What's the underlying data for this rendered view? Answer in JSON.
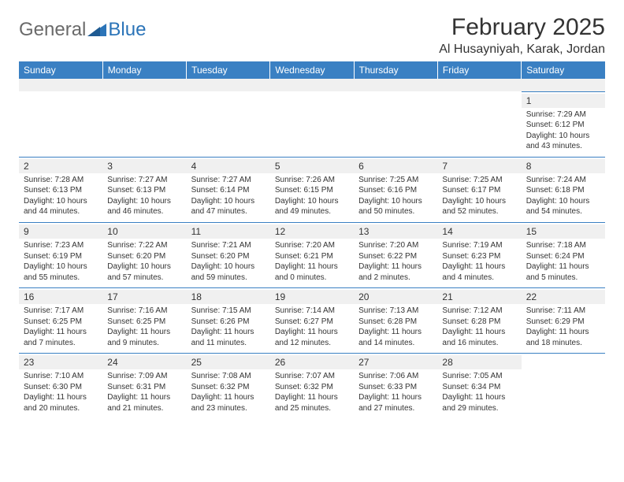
{
  "logo": {
    "general": "General",
    "blue": "Blue"
  },
  "title": "February 2025",
  "subtitle": "Al Husayniyah, Karak, Jordan",
  "colors": {
    "header_bg": "#3a80c3",
    "header_text": "#ffffff",
    "rule": "#3a80c3",
    "spacer_bg": "#f0f0f0",
    "daynum_bg": "#f0f0f0",
    "body_text": "#333333",
    "logo_gray": "#6a6a6a",
    "logo_blue": "#2b74b8",
    "page_bg": "#ffffff"
  },
  "typography": {
    "title_fontsize": 30,
    "subtitle_fontsize": 16,
    "dayhead_fontsize": 12,
    "daynum_fontsize": 12,
    "body_fontsize": 10
  },
  "dayheads": [
    "Sunday",
    "Monday",
    "Tuesday",
    "Wednesday",
    "Thursday",
    "Friday",
    "Saturday"
  ],
  "weeks": [
    [
      null,
      null,
      null,
      null,
      null,
      null,
      {
        "n": "1",
        "sr": "Sunrise: 7:29 AM",
        "ss": "Sunset: 6:12 PM",
        "dl1": "Daylight: 10 hours",
        "dl2": "and 43 minutes."
      }
    ],
    [
      {
        "n": "2",
        "sr": "Sunrise: 7:28 AM",
        "ss": "Sunset: 6:13 PM",
        "dl1": "Daylight: 10 hours",
        "dl2": "and 44 minutes."
      },
      {
        "n": "3",
        "sr": "Sunrise: 7:27 AM",
        "ss": "Sunset: 6:13 PM",
        "dl1": "Daylight: 10 hours",
        "dl2": "and 46 minutes."
      },
      {
        "n": "4",
        "sr": "Sunrise: 7:27 AM",
        "ss": "Sunset: 6:14 PM",
        "dl1": "Daylight: 10 hours",
        "dl2": "and 47 minutes."
      },
      {
        "n": "5",
        "sr": "Sunrise: 7:26 AM",
        "ss": "Sunset: 6:15 PM",
        "dl1": "Daylight: 10 hours",
        "dl2": "and 49 minutes."
      },
      {
        "n": "6",
        "sr": "Sunrise: 7:25 AM",
        "ss": "Sunset: 6:16 PM",
        "dl1": "Daylight: 10 hours",
        "dl2": "and 50 minutes."
      },
      {
        "n": "7",
        "sr": "Sunrise: 7:25 AM",
        "ss": "Sunset: 6:17 PM",
        "dl1": "Daylight: 10 hours",
        "dl2": "and 52 minutes."
      },
      {
        "n": "8",
        "sr": "Sunrise: 7:24 AM",
        "ss": "Sunset: 6:18 PM",
        "dl1": "Daylight: 10 hours",
        "dl2": "and 54 minutes."
      }
    ],
    [
      {
        "n": "9",
        "sr": "Sunrise: 7:23 AM",
        "ss": "Sunset: 6:19 PM",
        "dl1": "Daylight: 10 hours",
        "dl2": "and 55 minutes."
      },
      {
        "n": "10",
        "sr": "Sunrise: 7:22 AM",
        "ss": "Sunset: 6:20 PM",
        "dl1": "Daylight: 10 hours",
        "dl2": "and 57 minutes."
      },
      {
        "n": "11",
        "sr": "Sunrise: 7:21 AM",
        "ss": "Sunset: 6:20 PM",
        "dl1": "Daylight: 10 hours",
        "dl2": "and 59 minutes."
      },
      {
        "n": "12",
        "sr": "Sunrise: 7:20 AM",
        "ss": "Sunset: 6:21 PM",
        "dl1": "Daylight: 11 hours",
        "dl2": "and 0 minutes."
      },
      {
        "n": "13",
        "sr": "Sunrise: 7:20 AM",
        "ss": "Sunset: 6:22 PM",
        "dl1": "Daylight: 11 hours",
        "dl2": "and 2 minutes."
      },
      {
        "n": "14",
        "sr": "Sunrise: 7:19 AM",
        "ss": "Sunset: 6:23 PM",
        "dl1": "Daylight: 11 hours",
        "dl2": "and 4 minutes."
      },
      {
        "n": "15",
        "sr": "Sunrise: 7:18 AM",
        "ss": "Sunset: 6:24 PM",
        "dl1": "Daylight: 11 hours",
        "dl2": "and 5 minutes."
      }
    ],
    [
      {
        "n": "16",
        "sr": "Sunrise: 7:17 AM",
        "ss": "Sunset: 6:25 PM",
        "dl1": "Daylight: 11 hours",
        "dl2": "and 7 minutes."
      },
      {
        "n": "17",
        "sr": "Sunrise: 7:16 AM",
        "ss": "Sunset: 6:25 PM",
        "dl1": "Daylight: 11 hours",
        "dl2": "and 9 minutes."
      },
      {
        "n": "18",
        "sr": "Sunrise: 7:15 AM",
        "ss": "Sunset: 6:26 PM",
        "dl1": "Daylight: 11 hours",
        "dl2": "and 11 minutes."
      },
      {
        "n": "19",
        "sr": "Sunrise: 7:14 AM",
        "ss": "Sunset: 6:27 PM",
        "dl1": "Daylight: 11 hours",
        "dl2": "and 12 minutes."
      },
      {
        "n": "20",
        "sr": "Sunrise: 7:13 AM",
        "ss": "Sunset: 6:28 PM",
        "dl1": "Daylight: 11 hours",
        "dl2": "and 14 minutes."
      },
      {
        "n": "21",
        "sr": "Sunrise: 7:12 AM",
        "ss": "Sunset: 6:28 PM",
        "dl1": "Daylight: 11 hours",
        "dl2": "and 16 minutes."
      },
      {
        "n": "22",
        "sr": "Sunrise: 7:11 AM",
        "ss": "Sunset: 6:29 PM",
        "dl1": "Daylight: 11 hours",
        "dl2": "and 18 minutes."
      }
    ],
    [
      {
        "n": "23",
        "sr": "Sunrise: 7:10 AM",
        "ss": "Sunset: 6:30 PM",
        "dl1": "Daylight: 11 hours",
        "dl2": "and 20 minutes."
      },
      {
        "n": "24",
        "sr": "Sunrise: 7:09 AM",
        "ss": "Sunset: 6:31 PM",
        "dl1": "Daylight: 11 hours",
        "dl2": "and 21 minutes."
      },
      {
        "n": "25",
        "sr": "Sunrise: 7:08 AM",
        "ss": "Sunset: 6:32 PM",
        "dl1": "Daylight: 11 hours",
        "dl2": "and 23 minutes."
      },
      {
        "n": "26",
        "sr": "Sunrise: 7:07 AM",
        "ss": "Sunset: 6:32 PM",
        "dl1": "Daylight: 11 hours",
        "dl2": "and 25 minutes."
      },
      {
        "n": "27",
        "sr": "Sunrise: 7:06 AM",
        "ss": "Sunset: 6:33 PM",
        "dl1": "Daylight: 11 hours",
        "dl2": "and 27 minutes."
      },
      {
        "n": "28",
        "sr": "Sunrise: 7:05 AM",
        "ss": "Sunset: 6:34 PM",
        "dl1": "Daylight: 11 hours",
        "dl2": "and 29 minutes."
      },
      null
    ]
  ]
}
